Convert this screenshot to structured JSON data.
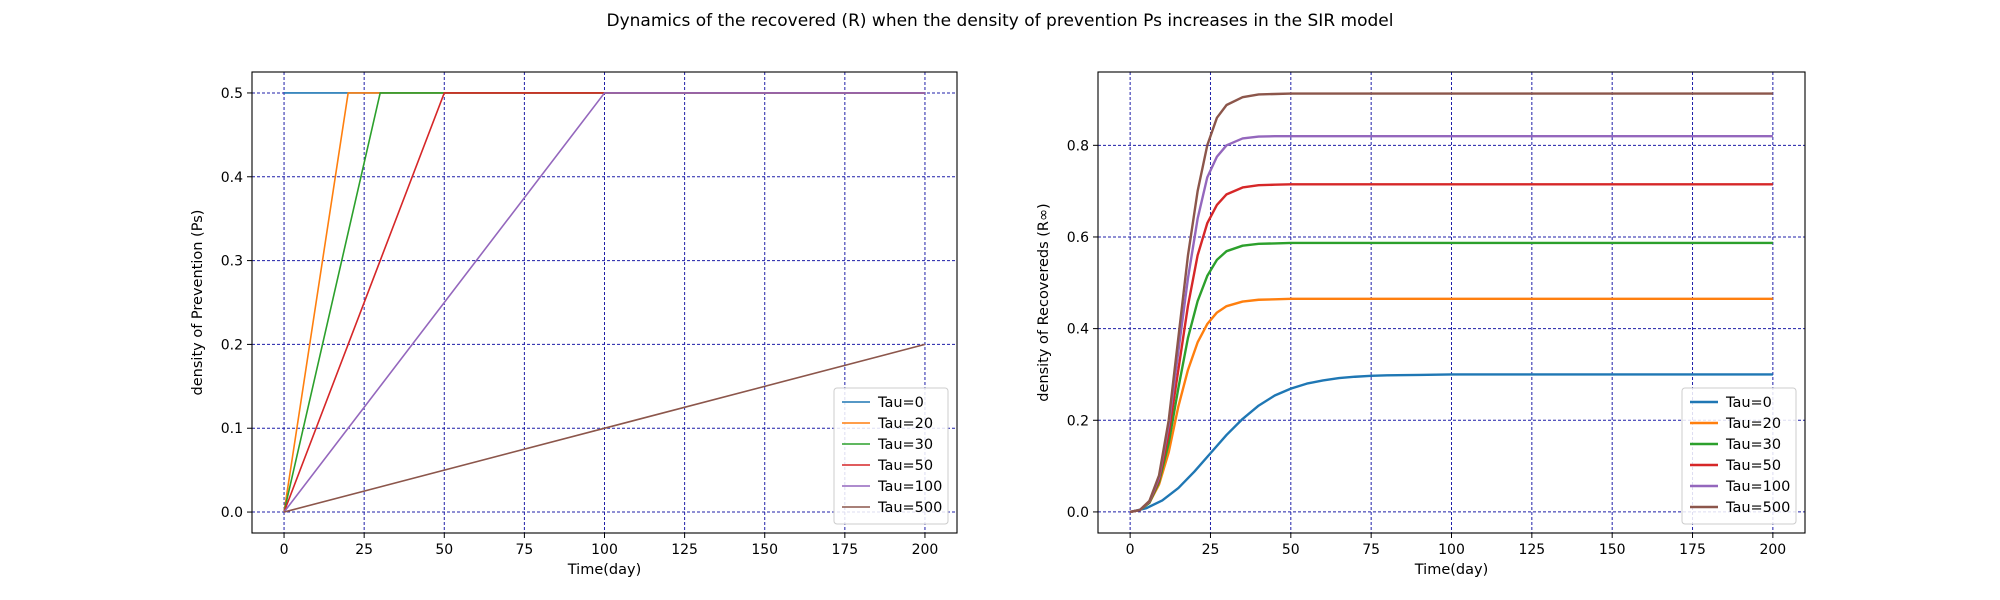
{
  "figure_title": "Dynamics of the recovered (R) when the density of prevention Ps increases in the SIR model",
  "chart_data": [
    {
      "type": "line",
      "title": "",
      "xlabel": "Time(day)",
      "ylabel": "density of Prevention (Ps)",
      "xlim": [
        -10,
        210
      ],
      "ylim": [
        -0.025,
        0.525
      ],
      "xticks": [
        0,
        25,
        50,
        75,
        100,
        125,
        150,
        175,
        200
      ],
      "yticks": [
        0.0,
        0.1,
        0.2,
        0.3,
        0.4,
        0.5
      ],
      "xtick_labels": [
        "0",
        "25",
        "50",
        "75",
        "100",
        "125",
        "150",
        "175",
        "200"
      ],
      "ytick_labels": [
        "0.0",
        "0.1",
        "0.2",
        "0.3",
        "0.4",
        "0.5"
      ],
      "grid": true,
      "legend_position": "lower-right",
      "series": [
        {
          "name": "Tau=0",
          "color": "#1f77b4",
          "x": [
            0,
            200
          ],
          "y": [
            0.5,
            0.5
          ]
        },
        {
          "name": "Tau=20",
          "color": "#ff7f0e",
          "x": [
            0,
            20,
            200
          ],
          "y": [
            0,
            0.5,
            0.5
          ]
        },
        {
          "name": "Tau=30",
          "color": "#2ca02c",
          "x": [
            0,
            30,
            200
          ],
          "y": [
            0,
            0.5,
            0.5
          ]
        },
        {
          "name": "Tau=50",
          "color": "#d62728",
          "x": [
            0,
            50,
            200
          ],
          "y": [
            0,
            0.5,
            0.5
          ]
        },
        {
          "name": "Tau=100",
          "color": "#9467bd",
          "x": [
            0,
            100,
            200
          ],
          "y": [
            0,
            0.5,
            0.5
          ]
        },
        {
          "name": "Tau=500",
          "color": "#8c564b",
          "x": [
            0,
            200
          ],
          "y": [
            0,
            0.2
          ]
        }
      ]
    },
    {
      "type": "line",
      "title": "",
      "xlabel": "Time(day)",
      "ylabel": "density of Recovereds (R∞)",
      "xlim": [
        -10,
        210
      ],
      "ylim": [
        -0.046,
        0.96
      ],
      "xticks": [
        0,
        25,
        50,
        75,
        100,
        125,
        150,
        175,
        200
      ],
      "yticks": [
        0.0,
        0.2,
        0.4,
        0.6,
        0.8
      ],
      "xtick_labels": [
        "0",
        "25",
        "50",
        "75",
        "100",
        "125",
        "150",
        "175",
        "200"
      ],
      "ytick_labels": [
        "0.0",
        "0.2",
        "0.4",
        "0.6",
        "0.8"
      ],
      "grid": true,
      "legend_position": "lower-right",
      "series": [
        {
          "name": "Tau=0",
          "color": "#1f77b4",
          "x": [
            0,
            5,
            10,
            15,
            20,
            25,
            30,
            35,
            40,
            45,
            50,
            55,
            60,
            65,
            70,
            75,
            80,
            90,
            100,
            110,
            125,
            150,
            175,
            200
          ],
          "y": [
            0,
            0.008,
            0.025,
            0.052,
            0.088,
            0.128,
            0.168,
            0.203,
            0.232,
            0.254,
            0.269,
            0.28,
            0.287,
            0.292,
            0.295,
            0.297,
            0.298,
            0.299,
            0.3,
            0.3,
            0.3,
            0.3,
            0.3,
            0.3
          ]
        },
        {
          "name": "Tau=20",
          "color": "#ff7f0e",
          "x": [
            0,
            3,
            6,
            9,
            12,
            15,
            18,
            21,
            24,
            27,
            30,
            35,
            40,
            45,
            50,
            60,
            80,
            100,
            150,
            200
          ],
          "y": [
            0,
            0.004,
            0.02,
            0.06,
            0.13,
            0.23,
            0.31,
            0.37,
            0.41,
            0.435,
            0.449,
            0.459,
            0.463,
            0.464,
            0.465,
            0.465,
            0.465,
            0.465,
            0.465,
            0.465
          ]
        },
        {
          "name": "Tau=30",
          "color": "#2ca02c",
          "x": [
            0,
            3,
            6,
            9,
            12,
            15,
            18,
            21,
            24,
            27,
            30,
            35,
            40,
            45,
            50,
            60,
            80,
            100,
            150,
            200
          ],
          "y": [
            0,
            0.004,
            0.02,
            0.065,
            0.15,
            0.27,
            0.38,
            0.46,
            0.515,
            0.55,
            0.569,
            0.581,
            0.585,
            0.586,
            0.587,
            0.587,
            0.587,
            0.587,
            0.587,
            0.587
          ]
        },
        {
          "name": "Tau=50",
          "color": "#d62728",
          "x": [
            0,
            3,
            6,
            9,
            12,
            15,
            18,
            21,
            24,
            27,
            30,
            35,
            40,
            45,
            50,
            60,
            80,
            100,
            150,
            200
          ],
          "y": [
            0,
            0.004,
            0.022,
            0.07,
            0.17,
            0.31,
            0.45,
            0.56,
            0.63,
            0.67,
            0.693,
            0.708,
            0.713,
            0.714,
            0.715,
            0.715,
            0.715,
            0.715,
            0.715,
            0.715
          ]
        },
        {
          "name": "Tau=100",
          "color": "#9467bd",
          "x": [
            0,
            3,
            6,
            9,
            12,
            15,
            18,
            21,
            24,
            27,
            30,
            35,
            40,
            45,
            50,
            60,
            80,
            100,
            150,
            200
          ],
          "y": [
            0,
            0.004,
            0.023,
            0.075,
            0.19,
            0.35,
            0.51,
            0.64,
            0.73,
            0.775,
            0.8,
            0.815,
            0.819,
            0.82,
            0.82,
            0.82,
            0.82,
            0.82,
            0.82,
            0.82
          ]
        },
        {
          "name": "Tau=500",
          "color": "#8c564b",
          "x": [
            0,
            3,
            6,
            9,
            12,
            15,
            18,
            21,
            24,
            27,
            30,
            35,
            40,
            45,
            50,
            60,
            80,
            100,
            150,
            200
          ],
          "y": [
            0,
            0.004,
            0.024,
            0.08,
            0.2,
            0.38,
            0.56,
            0.7,
            0.8,
            0.86,
            0.888,
            0.905,
            0.911,
            0.912,
            0.913,
            0.913,
            0.913,
            0.913,
            0.913,
            0.913
          ]
        }
      ]
    }
  ]
}
